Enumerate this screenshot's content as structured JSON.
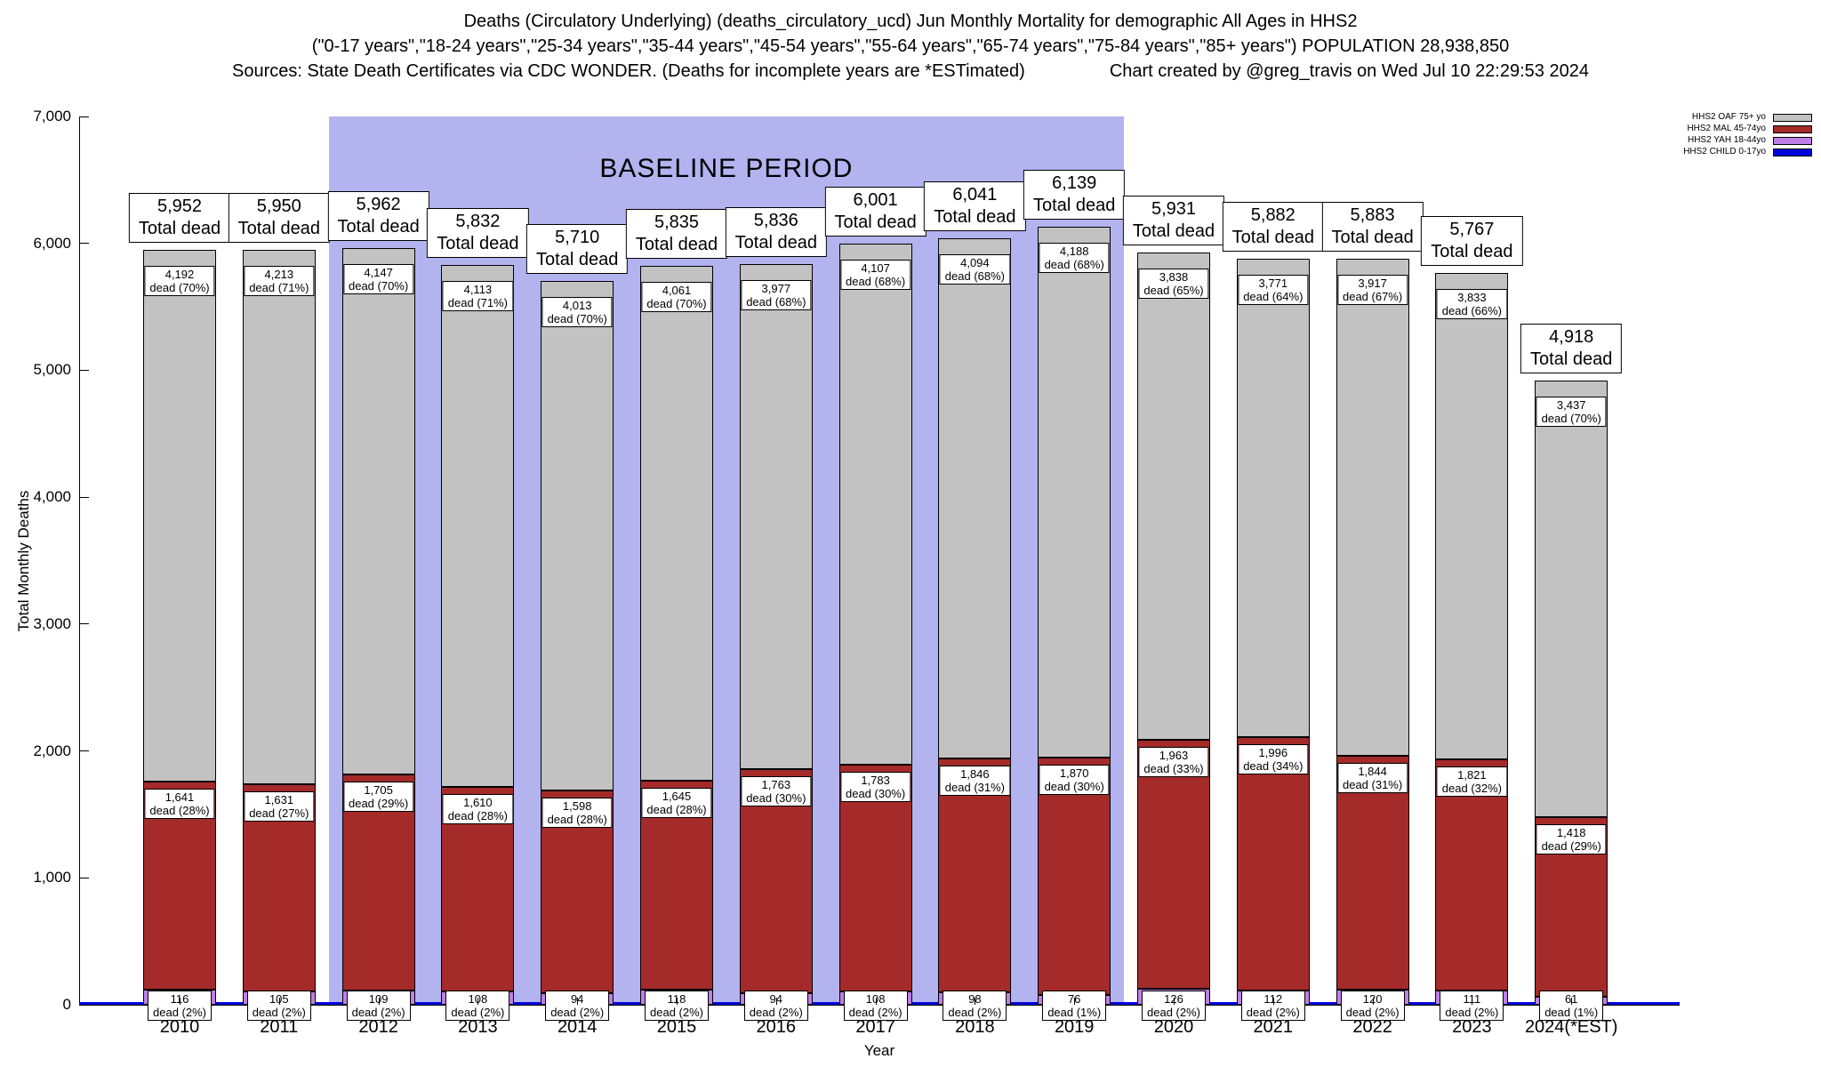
{
  "header": {
    "title_line1": "Deaths (Circulatory Underlying) (deaths_circulatory_ucd) Jun Monthly Mortality for demographic All Ages in HHS2",
    "title_line2": "(\"0-17 years\",\"18-24 years\",\"25-34 years\",\"35-44 years\",\"45-54 years\",\"55-64 years\",\"65-74 years\",\"75-84 years\",\"85+ years\") POPULATION 28,938,850",
    "sources": "Sources: State Death Certificates via CDC WONDER. (Deaths for incomplete years are *ESTimated)",
    "credit": "Chart created by @greg_travis on Wed Jul 10 22:29:53 2024"
  },
  "chart_data": {
    "type": "bar",
    "stacked": true,
    "xlabel": "Year",
    "ylabel": "Total Monthly Deaths",
    "ylim": [
      0,
      7000
    ],
    "ytick_labels": [
      "0",
      "1,000",
      "2,000",
      "3,000",
      "4,000",
      "5,000",
      "6,000",
      "7,000"
    ],
    "grid": false,
    "legend_position": "top-right",
    "total_caption": "Total dead",
    "baseline_period": {
      "label": "BASELINE PERIOD",
      "from": "2012",
      "to": "2019"
    },
    "colors": {
      "oaf": "#c2c2c2",
      "mal": "#a52a2a",
      "yah": "#bf7fe6",
      "child": "#0000dd",
      "baseline": "#b3b3f0"
    },
    "legend": [
      {
        "key": "oaf",
        "label": "HHS2 OAF 75+ yo"
      },
      {
        "key": "mal",
        "label": "HHS2 MAL 45-74yo"
      },
      {
        "key": "yah",
        "label": "HHS2 YAH 18-44yo"
      },
      {
        "key": "child",
        "label": "HHS2 CHILD 0-17yo"
      }
    ],
    "categories": [
      "2010",
      "2011",
      "2012",
      "2013",
      "2014",
      "2015",
      "2016",
      "2017",
      "2018",
      "2019",
      "2020",
      "2021",
      "2022",
      "2023",
      "2024(*EST)"
    ],
    "bars": [
      {
        "year": "2010",
        "total_value": 5952,
        "total_label": "5,952",
        "oaf": {
          "value": 4192,
          "label": "4,192",
          "pct": "dead (70%)"
        },
        "mal": {
          "value": 1641,
          "label": "1,641",
          "pct": "dead (28%)"
        },
        "yah": {
          "value": 116,
          "label": "116",
          "pct": "dead (2%)"
        }
      },
      {
        "year": "2011",
        "total_value": 5950,
        "total_label": "5,950",
        "oaf": {
          "value": 4213,
          "label": "4,213",
          "pct": "dead (71%)"
        },
        "mal": {
          "value": 1631,
          "label": "1,631",
          "pct": "dead (27%)"
        },
        "yah": {
          "value": 105,
          "label": "105",
          "pct": "dead (2%)"
        }
      },
      {
        "year": "2012",
        "total_value": 5962,
        "total_label": "5,962",
        "oaf": {
          "value": 4147,
          "label": "4,147",
          "pct": "dead (70%)"
        },
        "mal": {
          "value": 1705,
          "label": "1,705",
          "pct": "dead (29%)"
        },
        "yah": {
          "value": 109,
          "label": "109",
          "pct": "dead (2%)"
        }
      },
      {
        "year": "2013",
        "total_value": 5832,
        "total_label": "5,832",
        "oaf": {
          "value": 4113,
          "label": "4,113",
          "pct": "dead (71%)"
        },
        "mal": {
          "value": 1610,
          "label": "1,610",
          "pct": "dead (28%)"
        },
        "yah": {
          "value": 108,
          "label": "108",
          "pct": "dead (2%)"
        }
      },
      {
        "year": "2014",
        "total_value": 5710,
        "total_label": "5,710",
        "oaf": {
          "value": 4013,
          "label": "4,013",
          "pct": "dead (70%)"
        },
        "mal": {
          "value": 1598,
          "label": "1,598",
          "pct": "dead (28%)"
        },
        "yah": {
          "value": 94,
          "label": "94",
          "pct": "dead (2%)"
        }
      },
      {
        "year": "2015",
        "total_value": 5835,
        "total_label": "5,835",
        "oaf": {
          "value": 4061,
          "label": "4,061",
          "pct": "dead (70%)"
        },
        "mal": {
          "value": 1645,
          "label": "1,645",
          "pct": "dead (28%)"
        },
        "yah": {
          "value": 118,
          "label": "118",
          "pct": "dead (2%)"
        }
      },
      {
        "year": "2016",
        "total_value": 5836,
        "total_label": "5,836",
        "oaf": {
          "value": 3977,
          "label": "3,977",
          "pct": "dead (68%)"
        },
        "mal": {
          "value": 1763,
          "label": "1,763",
          "pct": "dead (30%)"
        },
        "yah": {
          "value": 94,
          "label": "94",
          "pct": "dead (2%)"
        }
      },
      {
        "year": "2017",
        "total_value": 6001,
        "total_label": "6,001",
        "oaf": {
          "value": 4107,
          "label": "4,107",
          "pct": "dead (68%)"
        },
        "mal": {
          "value": 1783,
          "label": "1,783",
          "pct": "dead (30%)"
        },
        "yah": {
          "value": 108,
          "label": "108",
          "pct": "dead (2%)"
        }
      },
      {
        "year": "2018",
        "total_value": 6041,
        "total_label": "6,041",
        "oaf": {
          "value": 4094,
          "label": "4,094",
          "pct": "dead (68%)"
        },
        "mal": {
          "value": 1846,
          "label": "1,846",
          "pct": "dead (31%)"
        },
        "yah": {
          "value": 98,
          "label": "98",
          "pct": "dead (2%)"
        }
      },
      {
        "year": "2019",
        "total_value": 6139,
        "total_label": "6,139",
        "oaf": {
          "value": 4188,
          "label": "4,188",
          "pct": "dead (68%)"
        },
        "mal": {
          "value": 1870,
          "label": "1,870",
          "pct": "dead (30%)"
        },
        "yah": {
          "value": 76,
          "label": "76",
          "pct": "dead (1%)"
        }
      },
      {
        "year": "2020",
        "total_value": 5931,
        "total_label": "5,931",
        "oaf": {
          "value": 3838,
          "label": "3,838",
          "pct": "dead (65%)"
        },
        "mal": {
          "value": 1963,
          "label": "1,963",
          "pct": "dead (33%)"
        },
        "yah": {
          "value": 126,
          "label": "126",
          "pct": "dead (2%)"
        }
      },
      {
        "year": "2021",
        "total_value": 5882,
        "total_label": "5,882",
        "oaf": {
          "value": 3771,
          "label": "3,771",
          "pct": "dead (64%)"
        },
        "mal": {
          "value": 1996,
          "label": "1,996",
          "pct": "dead (34%)"
        },
        "yah": {
          "value": 112,
          "label": "112",
          "pct": "dead (2%)"
        }
      },
      {
        "year": "2022",
        "total_value": 5883,
        "total_label": "5,883",
        "oaf": {
          "value": 3917,
          "label": "3,917",
          "pct": "dead (67%)"
        },
        "mal": {
          "value": 1844,
          "label": "1,844",
          "pct": "dead (31%)"
        },
        "yah": {
          "value": 120,
          "label": "120",
          "pct": "dead (2%)"
        }
      },
      {
        "year": "2023",
        "total_value": 5767,
        "total_label": "5,767",
        "oaf": {
          "value": 3833,
          "label": "3,833",
          "pct": "dead (66%)"
        },
        "mal": {
          "value": 1821,
          "label": "1,821",
          "pct": "dead (32%)"
        },
        "yah": {
          "value": 111,
          "label": "111",
          "pct": "dead (2%)"
        }
      },
      {
        "year": "2024(*EST)",
        "total_value": 4918,
        "total_label": "4,918",
        "oaf": {
          "value": 3437,
          "label": "3,437",
          "pct": "dead (70%)"
        },
        "mal": {
          "value": 1418,
          "label": "1,418",
          "pct": "dead (29%)"
        },
        "yah": {
          "value": 61,
          "label": "61",
          "pct": "dead (1%)"
        }
      }
    ]
  }
}
